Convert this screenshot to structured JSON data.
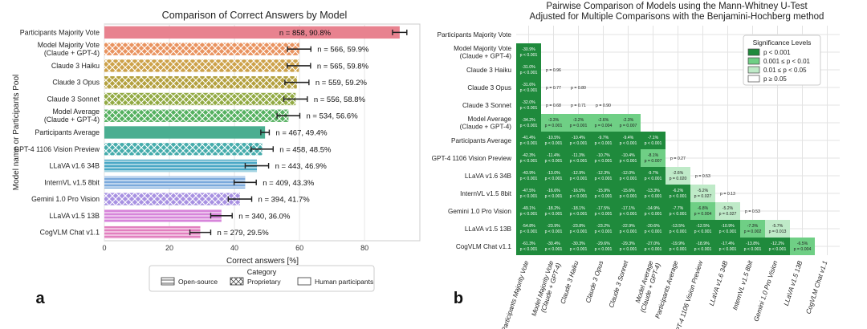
{
  "panel_a_letter": "a",
  "panel_b_letter": "b",
  "chart_data": [
    {
      "type": "bar",
      "orientation": "horizontal",
      "title": "Comparison of Correct Answers by Model",
      "xlabel": "Correct answers [%]",
      "ylabel": "Model name or Participants Pool",
      "xlim": [
        0,
        97
      ],
      "xticks": [
        0,
        20,
        40,
        60,
        80
      ],
      "grid": true,
      "categories": [
        "Participants Majority Vote",
        "Model Majority Vote\n(Claude + GPT-4)",
        "Claude 3 Haiku",
        "Claude 3 Opus",
        "Claude 3 Sonnet",
        "Model Average\n(Claude + GPT-4)",
        "Participants Average",
        "GPT-4 1106 Vision Preview",
        "LLaVA v1.6 34B",
        "InternVL v1.5 8bit",
        "Gemini 1.0 Pro Vision",
        "LLaVA v1.5 13B",
        "CogVLM Chat v1.1"
      ],
      "values": [
        90.8,
        59.9,
        59.8,
        59.2,
        58.8,
        56.6,
        49.4,
        48.5,
        46.9,
        43.3,
        41.7,
        36.0,
        29.5
      ],
      "error": [
        2.2,
        3.6,
        3.6,
        3.7,
        3.6,
        3.5,
        1.3,
        3.4,
        3.6,
        3.4,
        3.6,
        3.3,
        3.2
      ],
      "category_type": [
        "Human participants",
        "Proprietary",
        "Proprietary",
        "Proprietary",
        "Proprietary",
        "Proprietary",
        "Human participants",
        "Proprietary",
        "Open-source",
        "Open-source",
        "Proprietary",
        "Open-source",
        "Open-source"
      ],
      "colors": [
        "#e8828f",
        "#e9935f",
        "#cda24a",
        "#b4a13f",
        "#93ab45",
        "#55b160",
        "#4aae91",
        "#46acac",
        "#4aa8c6",
        "#7aa9dc",
        "#a891e2",
        "#d785da",
        "#e27fbf"
      ],
      "data_labels": [
        "n = 858, 90.8%",
        "n = 566, 59.9%",
        "n = 565, 59.8%",
        "n = 559, 59.2%",
        "n = 556, 58.8%",
        "n = 534, 56.6%",
        "n = 467, 49.4%",
        "n = 458, 48.5%",
        "n = 443, 46.9%",
        "n = 409, 43.3%",
        "n = 394, 41.7%",
        "n = 340, 36.0%",
        "n = 279, 29.5%"
      ],
      "legend": {
        "title": "Category",
        "placement": "bottom",
        "entries": [
          {
            "label": "Open-source",
            "pattern": "horizontal-lines"
          },
          {
            "label": "Proprietary",
            "pattern": "crosshatch"
          },
          {
            "label": "Human participants",
            "pattern": "solid"
          }
        ]
      }
    },
    {
      "type": "heatmap",
      "title": "Pairwise Comparison of Models using the Mann-Whitney U-Test",
      "subtitle": "Adjusted for Multiple Comparisons with the Benjamini-Hochberg method",
      "labels": [
        "Participants Majority Vote",
        "Model Majority Vote\n(Claude + GPT-4)",
        "Claude 3 Haiku",
        "Claude 3 Opus",
        "Claude 3 Sonnet",
        "Model Average\n(Claude + GPT-4)",
        "Participants Average",
        "GPT-4 1106 Vision Preview",
        "LLaVA v1.6 34B",
        "InternVL v1.5 8bit",
        "Gemini 1.0 Pro Vision",
        "LLaVA v1.5 13B",
        "CogVLM Chat v1.1"
      ],
      "cells": [
        {
          "row": 1,
          "col": 0,
          "diff": "-30.9%",
          "p": "p < 0.001",
          "level": 0
        },
        {
          "row": 2,
          "col": 0,
          "diff": "-31.0%",
          "p": "p < 0.001",
          "level": 0
        },
        {
          "row": 2,
          "col": 1,
          "p": "p = 0.96",
          "level": 3
        },
        {
          "row": 3,
          "col": 0,
          "diff": "-31.6%",
          "p": "p < 0.001",
          "level": 0
        },
        {
          "row": 3,
          "col": 1,
          "p": "p = 0.77",
          "level": 3
        },
        {
          "row": 3,
          "col": 2,
          "p": "p = 0.80",
          "level": 3
        },
        {
          "row": 4,
          "col": 0,
          "diff": "-32.0%",
          "p": "p < 0.001",
          "level": 0
        },
        {
          "row": 4,
          "col": 1,
          "p": "p = 0.68",
          "level": 3
        },
        {
          "row": 4,
          "col": 2,
          "p": "p = 0.71",
          "level": 3
        },
        {
          "row": 4,
          "col": 3,
          "p": "p = 0.90",
          "level": 3
        },
        {
          "row": 5,
          "col": 0,
          "diff": "-34.2%",
          "p": "p < 0.001",
          "level": 0
        },
        {
          "row": 5,
          "col": 1,
          "diff": "-3.3%",
          "p": "p = 0.001",
          "level": 1
        },
        {
          "row": 5,
          "col": 2,
          "diff": "-3.2%",
          "p": "p = 0.001",
          "level": 1
        },
        {
          "row": 5,
          "col": 3,
          "diff": "-2.6%",
          "p": "p = 0.004",
          "level": 1
        },
        {
          "row": 5,
          "col": 4,
          "diff": "-2.3%",
          "p": "p = 0.007",
          "level": 1
        },
        {
          "row": 6,
          "col": 0,
          "diff": "-41.4%",
          "p": "p < 0.001",
          "level": 0
        },
        {
          "row": 6,
          "col": 1,
          "diff": "-10.5%",
          "p": "p < 0.001",
          "level": 0
        },
        {
          "row": 6,
          "col": 2,
          "diff": "-10.4%",
          "p": "p < 0.001",
          "level": 0
        },
        {
          "row": 6,
          "col": 3,
          "diff": "-9.7%",
          "p": "p < 0.001",
          "level": 0
        },
        {
          "row": 6,
          "col": 4,
          "diff": "-9.4%",
          "p": "p < 0.001",
          "level": 0
        },
        {
          "row": 6,
          "col": 5,
          "diff": "-7.1%",
          "p": "p < 0.001",
          "level": 0
        },
        {
          "row": 7,
          "col": 0,
          "diff": "-42.3%",
          "p": "p < 0.001",
          "level": 0
        },
        {
          "row": 7,
          "col": 1,
          "diff": "-11.4%",
          "p": "p < 0.001",
          "level": 0
        },
        {
          "row": 7,
          "col": 2,
          "diff": "-11.3%",
          "p": "p < 0.001",
          "level": 0
        },
        {
          "row": 7,
          "col": 3,
          "diff": "-10.7%",
          "p": "p < 0.001",
          "level": 0
        },
        {
          "row": 7,
          "col": 4,
          "diff": "-10.4%",
          "p": "p < 0.001",
          "level": 0
        },
        {
          "row": 7,
          "col": 5,
          "diff": "-8.1%",
          "p": "p = 0.007",
          "level": 1
        },
        {
          "row": 7,
          "col": 6,
          "p": "p = 0.27",
          "level": 3
        },
        {
          "row": 8,
          "col": 0,
          "diff": "-43.9%",
          "p": "p < 0.001",
          "level": 0
        },
        {
          "row": 8,
          "col": 1,
          "diff": "-13.0%",
          "p": "p < 0.001",
          "level": 0
        },
        {
          "row": 8,
          "col": 2,
          "diff": "-12.9%",
          "p": "p < 0.001",
          "level": 0
        },
        {
          "row": 8,
          "col": 3,
          "diff": "-12.3%",
          "p": "p < 0.001",
          "level": 0
        },
        {
          "row": 8,
          "col": 4,
          "diff": "-12.0%",
          "p": "p < 0.001",
          "level": 0
        },
        {
          "row": 8,
          "col": 5,
          "diff": "-9.7%",
          "p": "p < 0.001",
          "level": 0
        },
        {
          "row": 8,
          "col": 6,
          "diff": "-2.6%",
          "p": "p = 0.020",
          "level": 2
        },
        {
          "row": 8,
          "col": 7,
          "p": "p = 0.53",
          "level": 3
        },
        {
          "row": 9,
          "col": 0,
          "diff": "-47.5%",
          "p": "p < 0.001",
          "level": 0
        },
        {
          "row": 9,
          "col": 1,
          "diff": "-16.6%",
          "p": "p < 0.001",
          "level": 0
        },
        {
          "row": 9,
          "col": 2,
          "diff": "-16.5%",
          "p": "p < 0.001",
          "level": 0
        },
        {
          "row": 9,
          "col": 3,
          "diff": "-15.9%",
          "p": "p < 0.001",
          "level": 0
        },
        {
          "row": 9,
          "col": 4,
          "diff": "-15.6%",
          "p": "p < 0.001",
          "level": 0
        },
        {
          "row": 9,
          "col": 5,
          "diff": "-13.3%",
          "p": "p < 0.001",
          "level": 0
        },
        {
          "row": 9,
          "col": 6,
          "diff": "-6.2%",
          "p": "p < 0.001",
          "level": 0
        },
        {
          "row": 9,
          "col": 7,
          "diff": "-5.2%",
          "p": "p = 0.027",
          "level": 2
        },
        {
          "row": 9,
          "col": 8,
          "p": "p = 0.13",
          "level": 3
        },
        {
          "row": 10,
          "col": 0,
          "diff": "-49.1%",
          "p": "p < 0.001",
          "level": 0
        },
        {
          "row": 10,
          "col": 1,
          "diff": "-18.2%",
          "p": "p < 0.001",
          "level": 0
        },
        {
          "row": 10,
          "col": 2,
          "diff": "-18.1%",
          "p": "p < 0.001",
          "level": 0
        },
        {
          "row": 10,
          "col": 3,
          "diff": "-17.5%",
          "p": "p < 0.001",
          "level": 0
        },
        {
          "row": 10,
          "col": 4,
          "diff": "-17.1%",
          "p": "p < 0.001",
          "level": 0
        },
        {
          "row": 10,
          "col": 5,
          "diff": "-14.9%",
          "p": "p < 0.001",
          "level": 0
        },
        {
          "row": 10,
          "col": 6,
          "diff": "-7.7%",
          "p": "p < 0.001",
          "level": 0
        },
        {
          "row": 10,
          "col": 7,
          "diff": "-6.8%",
          "p": "p = 0.004",
          "level": 1
        },
        {
          "row": 10,
          "col": 8,
          "diff": "-5.2%",
          "p": "p = 0.027",
          "level": 2
        },
        {
          "row": 10,
          "col": 9,
          "p": "p = 0.53",
          "level": 3
        },
        {
          "row": 11,
          "col": 0,
          "diff": "-54.8%",
          "p": "p < 0.001",
          "level": 0
        },
        {
          "row": 11,
          "col": 1,
          "diff": "-23.9%",
          "p": "p < 0.001",
          "level": 0
        },
        {
          "row": 11,
          "col": 2,
          "diff": "-23.8%",
          "p": "p < 0.001",
          "level": 0
        },
        {
          "row": 11,
          "col": 3,
          "diff": "-23.2%",
          "p": "p < 0.001",
          "level": 0
        },
        {
          "row": 11,
          "col": 4,
          "diff": "-22.9%",
          "p": "p < 0.001",
          "level": 0
        },
        {
          "row": 11,
          "col": 5,
          "diff": "-20.6%",
          "p": "p < 0.001",
          "level": 0
        },
        {
          "row": 11,
          "col": 6,
          "diff": "-13.5%",
          "p": "p < 0.001",
          "level": 0
        },
        {
          "row": 11,
          "col": 7,
          "diff": "-12.5%",
          "p": "p < 0.001",
          "level": 0
        },
        {
          "row": 11,
          "col": 8,
          "diff": "-10.9%",
          "p": "p < 0.001",
          "level": 0
        },
        {
          "row": 11,
          "col": 9,
          "diff": "-7.3%",
          "p": "p = 0.002",
          "level": 1
        },
        {
          "row": 11,
          "col": 10,
          "diff": "-5.7%",
          "p": "p = 0.013",
          "level": 2
        },
        {
          "row": 12,
          "col": 0,
          "diff": "-61.3%",
          "p": "p < 0.001",
          "level": 0
        },
        {
          "row": 12,
          "col": 1,
          "diff": "-30.4%",
          "p": "p < 0.001",
          "level": 0
        },
        {
          "row": 12,
          "col": 2,
          "diff": "-30.3%",
          "p": "p < 0.001",
          "level": 0
        },
        {
          "row": 12,
          "col": 3,
          "diff": "-29.6%",
          "p": "p < 0.001",
          "level": 0
        },
        {
          "row": 12,
          "col": 4,
          "diff": "-29.3%",
          "p": "p < 0.001",
          "level": 0
        },
        {
          "row": 12,
          "col": 5,
          "diff": "-27.0%",
          "p": "p < 0.001",
          "level": 0
        },
        {
          "row": 12,
          "col": 6,
          "diff": "-19.9%",
          "p": "p < 0.001",
          "level": 0
        },
        {
          "row": 12,
          "col": 7,
          "diff": "-18.9%",
          "p": "p < 0.001",
          "level": 0
        },
        {
          "row": 12,
          "col": 8,
          "diff": "-17.4%",
          "p": "p < 0.001",
          "level": 0
        },
        {
          "row": 12,
          "col": 9,
          "diff": "-13.8%",
          "p": "p < 0.001",
          "level": 0
        },
        {
          "row": 12,
          "col": 10,
          "diff": "-12.2%",
          "p": "p < 0.001",
          "level": 0
        },
        {
          "row": 12,
          "col": 11,
          "diff": "-6.5%",
          "p": "p = 0.004",
          "level": 1
        }
      ],
      "legend": {
        "title": "Significance Levels",
        "placement": "top-right",
        "entries": [
          {
            "label": "p < 0.001",
            "color": "#1f8a3c"
          },
          {
            "label": "0.001 ≤ p < 0.01",
            "color": "#6fcf85"
          },
          {
            "label": "0.01 ≤ p < 0.05",
            "color": "#bfeac8"
          },
          {
            "label": "p ≥ 0.05",
            "color": "#ffffff"
          }
        ]
      }
    }
  ]
}
